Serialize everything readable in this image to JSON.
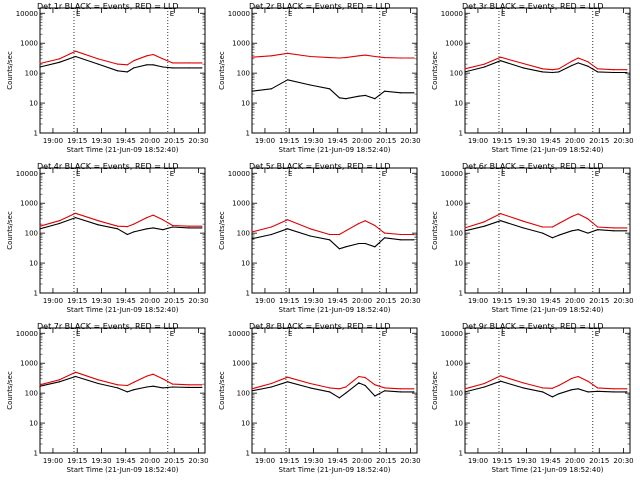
{
  "figure": {
    "colors": {
      "events": "#000000",
      "lld": "#e00000",
      "background": "#ffffff"
    },
    "x_ticks": [
      "19:00",
      "19:15",
      "19:30",
      "19:45",
      "20:00",
      "20:15",
      "20:30"
    ],
    "y_ticks": [
      "1",
      "10",
      "100",
      "1000",
      "10000"
    ],
    "ylabel": "Counts/sec",
    "xlabel": "Start Time (21-Jun-09 18:52:40)",
    "corner_marks": [
      "E",
      "E"
    ]
  },
  "chart_data": [
    {
      "type": "line",
      "title": "Det 1r BLACK = Events, RED = LLD",
      "yscale": "log",
      "ylim": [
        1,
        15000
      ],
      "x": [
        "18:52",
        "19:04",
        "19:14",
        "19:28",
        "19:40",
        "19:46",
        "19:50",
        "19:58",
        "20:02",
        "20:08",
        "20:14",
        "20:24",
        "20:32"
      ],
      "series": [
        {
          "key": "events",
          "values": [
            160,
            230,
            360,
            200,
            120,
            110,
            150,
            190,
            190,
            160,
            150,
            150,
            150
          ]
        },
        {
          "key": "lld",
          "values": [
            210,
            300,
            540,
            300,
            200,
            190,
            260,
            380,
            420,
            300,
            220,
            220,
            220
          ]
        }
      ]
    },
    {
      "type": "line",
      "title": "Det 2r BLACK = Events, RED = LLD",
      "yscale": "log",
      "ylim": [
        1,
        15000
      ],
      "x": [
        "18:52",
        "19:04",
        "19:14",
        "19:28",
        "19:40",
        "19:46",
        "19:50",
        "19:58",
        "20:02",
        "20:08",
        "20:14",
        "20:24",
        "20:32"
      ],
      "series": [
        {
          "key": "events",
          "values": [
            25,
            30,
            60,
            40,
            30,
            15,
            14,
            17,
            18,
            14,
            25,
            22,
            22
          ]
        },
        {
          "key": "lld",
          "values": [
            340,
            380,
            460,
            360,
            330,
            320,
            330,
            380,
            400,
            360,
            330,
            320,
            320
          ]
        }
      ]
    },
    {
      "type": "line",
      "title": "Det 3r BLACK = Events, RED = LLD",
      "yscale": "log",
      "ylim": [
        1,
        15000
      ],
      "x": [
        "18:52",
        "19:04",
        "19:14",
        "19:28",
        "19:40",
        "19:46",
        "19:50",
        "19:58",
        "20:02",
        "20:08",
        "20:14",
        "20:24",
        "20:32"
      ],
      "series": [
        {
          "key": "events",
          "values": [
            110,
            160,
            260,
            150,
            110,
            105,
            110,
            180,
            220,
            170,
            110,
            105,
            105
          ]
        },
        {
          "key": "lld",
          "values": [
            140,
            200,
            340,
            210,
            140,
            130,
            140,
            250,
            320,
            240,
            140,
            130,
            130
          ]
        }
      ]
    },
    {
      "type": "line",
      "title": "Det 4r BLACK = Events, RED = LLD",
      "yscale": "log",
      "ylim": [
        1,
        15000
      ],
      "x": [
        "18:52",
        "19:04",
        "19:14",
        "19:28",
        "19:40",
        "19:46",
        "19:50",
        "19:58",
        "20:02",
        "20:08",
        "20:14",
        "20:24",
        "20:32"
      ],
      "series": [
        {
          "key": "events",
          "values": [
            140,
            210,
            330,
            190,
            140,
            90,
            110,
            140,
            150,
            130,
            160,
            150,
            150
          ]
        },
        {
          "key": "lld",
          "values": [
            170,
            260,
            460,
            260,
            170,
            165,
            200,
            330,
            400,
            280,
            180,
            170,
            170
          ]
        }
      ]
    },
    {
      "type": "line",
      "title": "Det 5r BLACK = Events, RED = LLD",
      "yscale": "log",
      "ylim": [
        1,
        15000
      ],
      "x": [
        "18:52",
        "19:04",
        "19:14",
        "19:28",
        "19:40",
        "19:46",
        "19:50",
        "19:58",
        "20:02",
        "20:08",
        "20:14",
        "20:24",
        "20:32"
      ],
      "series": [
        {
          "key": "events",
          "values": [
            65,
            90,
            140,
            80,
            60,
            30,
            35,
            45,
            45,
            35,
            70,
            60,
            60
          ]
        },
        {
          "key": "lld",
          "values": [
            110,
            160,
            280,
            140,
            90,
            90,
            120,
            210,
            260,
            180,
            100,
            90,
            90
          ]
        }
      ]
    },
    {
      "type": "line",
      "title": "Det 6r BLACK = Events, RED = LLD",
      "yscale": "log",
      "ylim": [
        1,
        15000
      ],
      "x": [
        "18:52",
        "19:04",
        "19:14",
        "19:28",
        "19:40",
        "19:46",
        "19:50",
        "19:58",
        "20:02",
        "20:08",
        "20:14",
        "20:24",
        "20:32"
      ],
      "series": [
        {
          "key": "events",
          "values": [
            120,
            170,
            260,
            150,
            100,
            70,
            85,
            120,
            130,
            100,
            130,
            120,
            120
          ]
        },
        {
          "key": "lld",
          "values": [
            150,
            240,
            450,
            250,
            160,
            160,
            210,
            360,
            440,
            300,
            160,
            150,
            150
          ]
        }
      ]
    },
    {
      "type": "line",
      "title": "Det 7r BLACK = Events, RED = LLD",
      "yscale": "log",
      "ylim": [
        1,
        15000
      ],
      "x": [
        "18:52",
        "19:04",
        "19:14",
        "19:28",
        "19:40",
        "19:46",
        "19:50",
        "19:58",
        "20:02",
        "20:08",
        "20:14",
        "20:24",
        "20:32"
      ],
      "series": [
        {
          "key": "events",
          "values": [
            170,
            240,
            360,
            210,
            150,
            110,
            130,
            160,
            170,
            150,
            160,
            155,
            155
          ]
        },
        {
          "key": "lld",
          "values": [
            190,
            280,
            500,
            280,
            190,
            180,
            230,
            370,
            430,
            300,
            200,
            190,
            190
          ]
        }
      ]
    },
    {
      "type": "line",
      "title": "Det 8r BLACK = Events, RED = LLD",
      "yscale": "log",
      "ylim": [
        1,
        15000
      ],
      "x": [
        "18:52",
        "19:04",
        "19:14",
        "19:28",
        "19:40",
        "19:46",
        "19:50",
        "19:58",
        "20:02",
        "20:08",
        "20:14",
        "20:24",
        "20:32"
      ],
      "series": [
        {
          "key": "events",
          "values": [
            120,
            160,
            240,
            150,
            110,
            70,
            100,
            220,
            180,
            80,
            120,
            110,
            110
          ]
        },
        {
          "key": "lld",
          "values": [
            140,
            210,
            340,
            210,
            150,
            140,
            160,
            360,
            330,
            190,
            150,
            140,
            140
          ]
        }
      ]
    },
    {
      "type": "line",
      "title": "Det 9r BLACK = Events, RED = LLD",
      "yscale": "log",
      "ylim": [
        1,
        15000
      ],
      "x": [
        "18:52",
        "19:04",
        "19:14",
        "19:28",
        "19:40",
        "19:46",
        "19:50",
        "19:58",
        "20:02",
        "20:08",
        "20:14",
        "20:24",
        "20:32"
      ],
      "series": [
        {
          "key": "events",
          "values": [
            110,
            160,
            250,
            150,
            110,
            75,
            95,
            130,
            140,
            110,
            115,
            110,
            110
          ]
        },
        {
          "key": "lld",
          "values": [
            140,
            210,
            380,
            220,
            150,
            145,
            180,
            310,
            360,
            250,
            150,
            140,
            140
          ]
        }
      ]
    }
  ]
}
